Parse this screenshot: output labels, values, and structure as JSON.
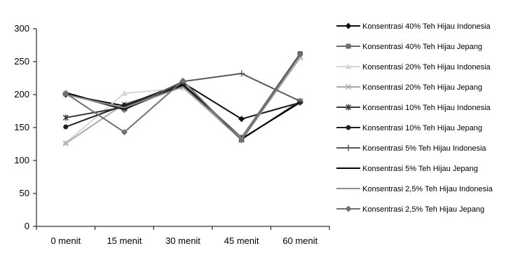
{
  "chart_data": {
    "type": "line",
    "title": "",
    "xlabel": "",
    "ylabel": "",
    "categories": [
      "0 menit",
      "15 menit",
      "30 menit",
      "45 menit",
      "60 menit"
    ],
    "ylim": [
      0,
      300
    ],
    "yticks": [
      0,
      50,
      100,
      150,
      200,
      250,
      300
    ],
    "grid": false,
    "legend_position": "right",
    "series": [
      {
        "name": "Konsentrasi 40% Teh Hijau Indonesia",
        "values": [
          200,
          183,
          218,
          163,
          188
        ],
        "color": "#111111",
        "marker": "diamond"
      },
      {
        "name": "Konsentrasi 40% Teh Hijau Jepang",
        "values": [
          201,
          178,
          216,
          135,
          262
        ],
        "color": "#6a6a6a",
        "marker": "square"
      },
      {
        "name": "Konsentrasi 20% Teh Hijau Indonesia",
        "values": [
          127,
          202,
          210,
          133,
          258
        ],
        "color": "#d6d6d6",
        "marker": "triangle"
      },
      {
        "name": "Konsentrasi 20% Teh Hijau Jepang",
        "values": [
          126,
          186,
          212,
          131,
          256
        ],
        "color": "#a9a9a9",
        "marker": "x"
      },
      {
        "name": "Konsentrasi 10% Teh Hijau Indonesia",
        "values": [
          165,
          181,
          215,
          132,
          190
        ],
        "color": "#3a3a3a",
        "marker": "star"
      },
      {
        "name": "Konsentrasi 10% Teh Hijau Jepang",
        "values": [
          151,
          184,
          216,
          134,
          262
        ],
        "color": "#202020",
        "marker": "circle"
      },
      {
        "name": "Konsentrasi 5% Teh Hijau Indonesia",
        "values": [
          202,
          177,
          220,
          232,
          190
        ],
        "color": "#5a5a5a",
        "marker": "plus"
      },
      {
        "name": "Konsentrasi 5% Teh Hijau Jepang",
        "values": [
          203,
          178,
          214,
          133,
          188
        ],
        "color": "#000000",
        "marker": "none"
      },
      {
        "name": "Konsentrasi 2,5% Teh Hijau Indonesia",
        "values": [
          200,
          180,
          212,
          134,
          260
        ],
        "color": "#8c8c8c",
        "marker": "none"
      },
      {
        "name": "Konsentrasi 2,5% Teh Hijau Jepang",
        "values": [
          202,
          143,
          221,
          131,
          261
        ],
        "color": "#707070",
        "marker": "diamond"
      }
    ]
  }
}
